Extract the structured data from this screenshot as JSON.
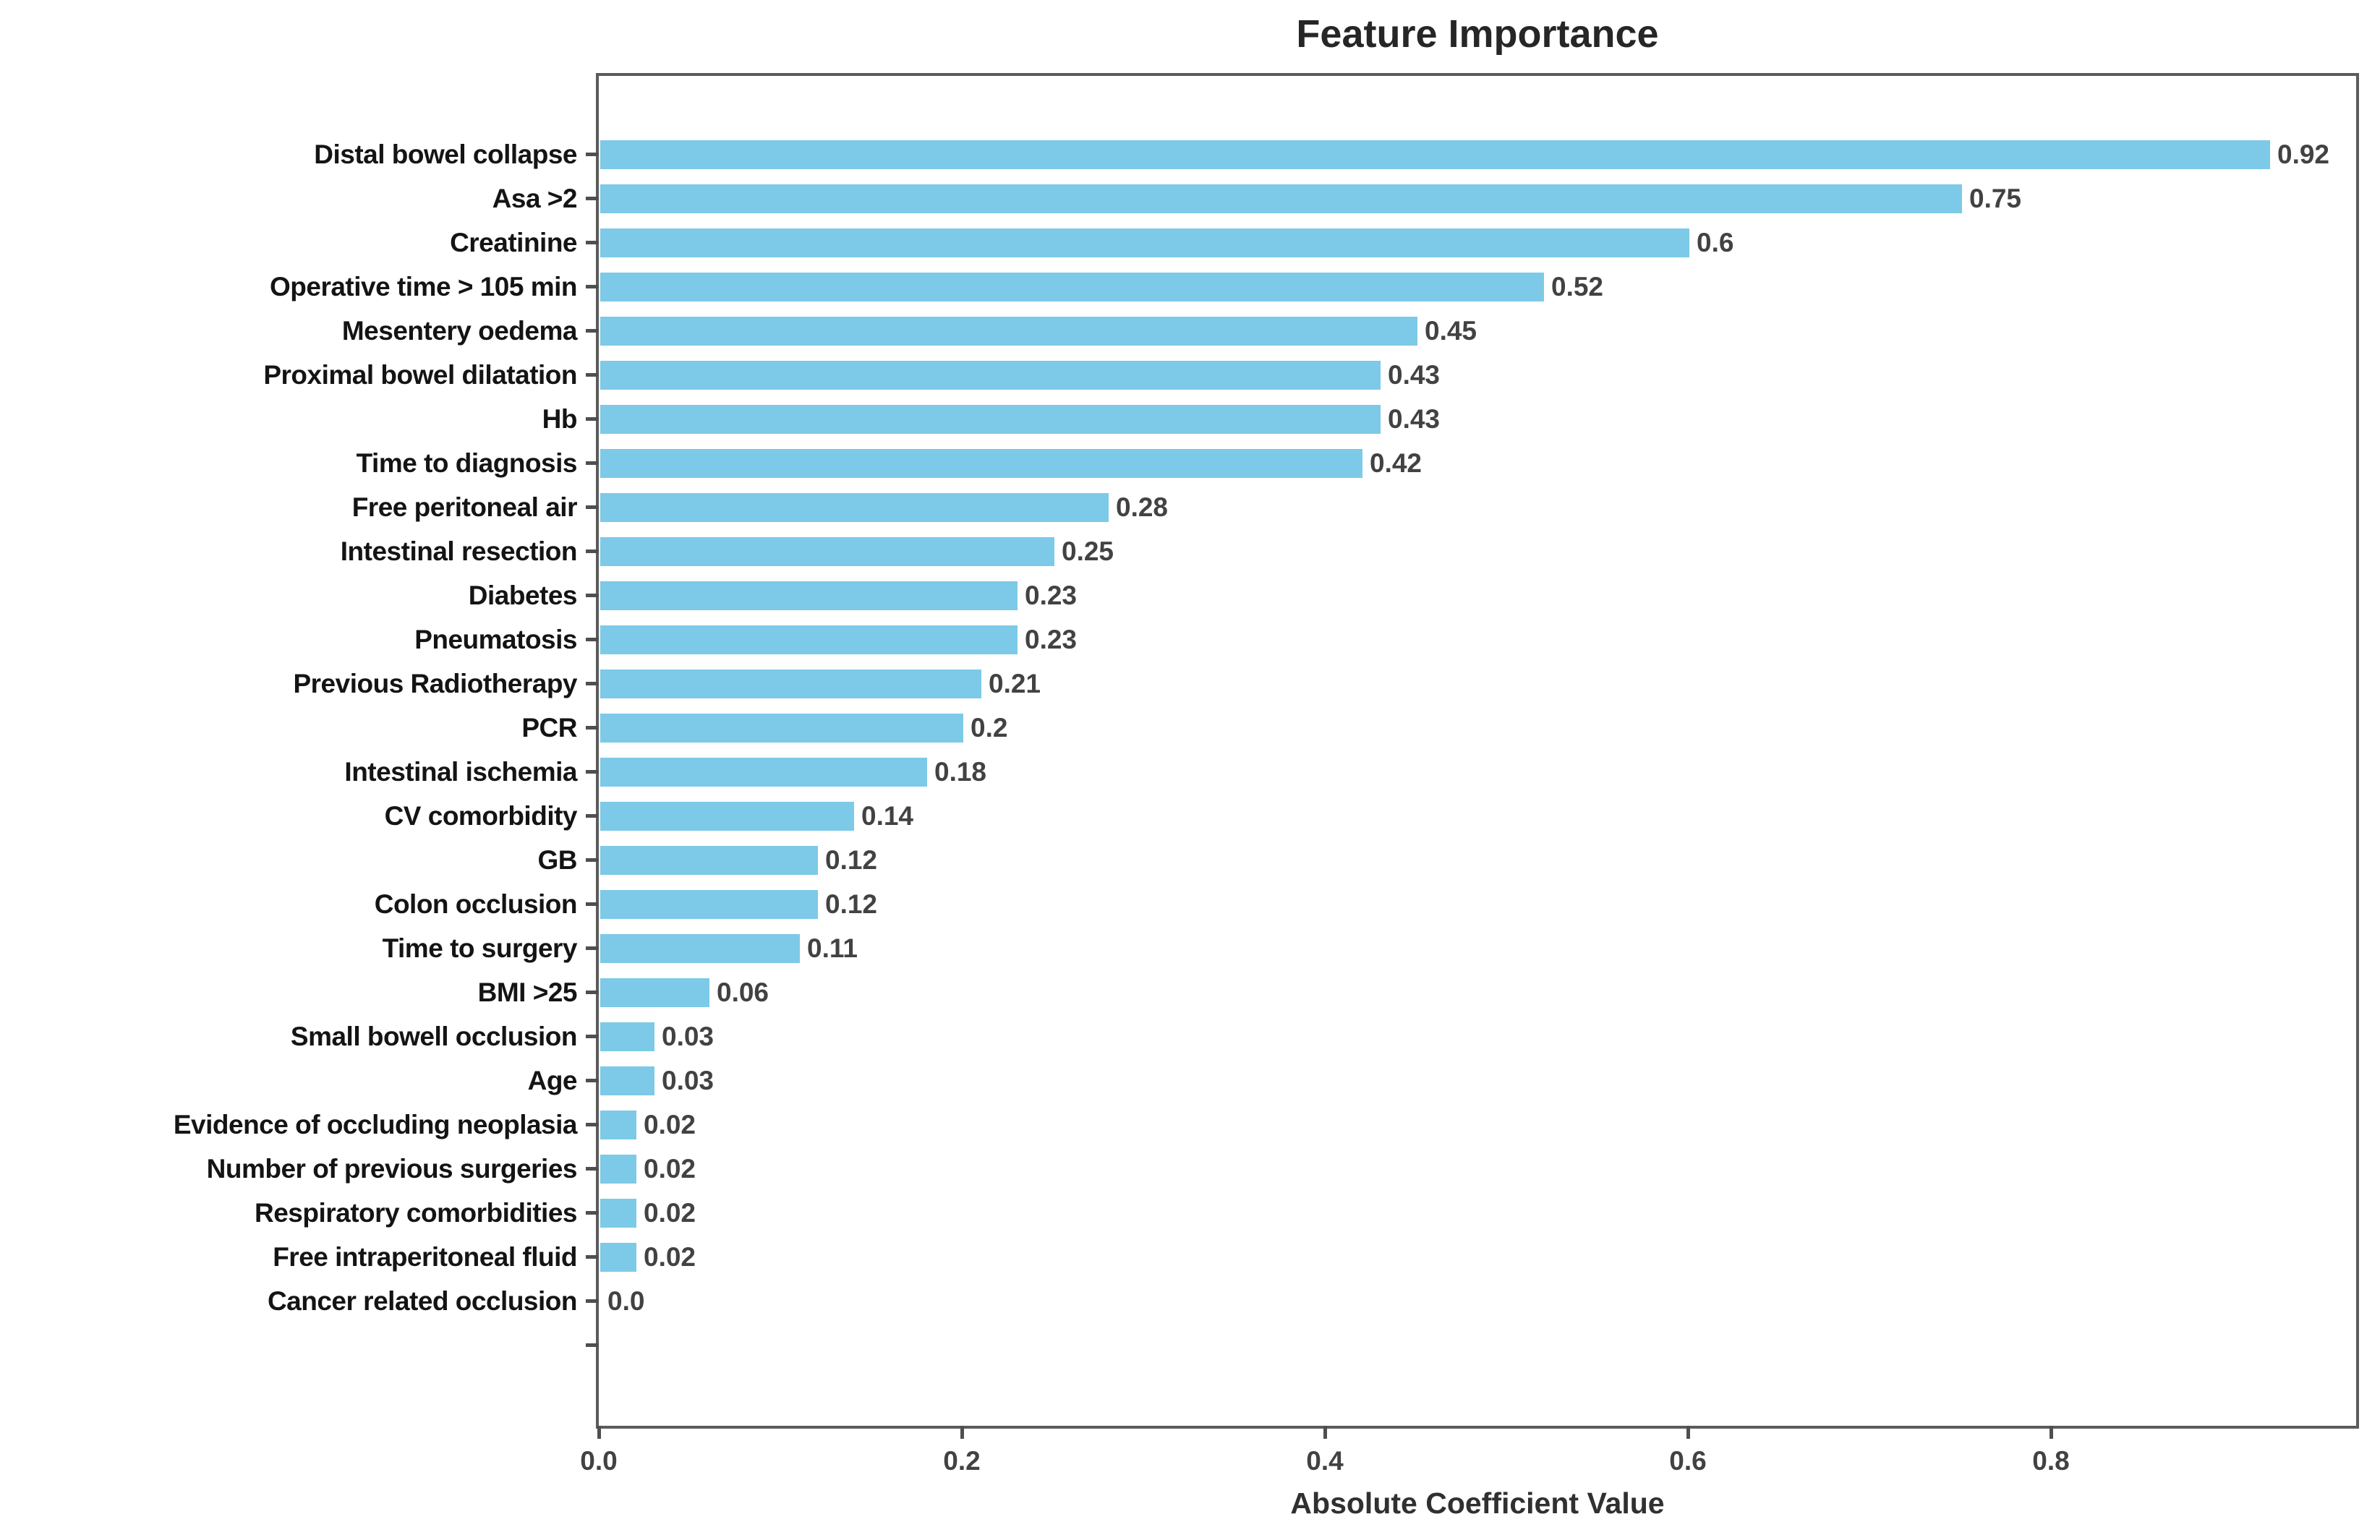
{
  "chart_data": {
    "type": "bar",
    "orientation": "horizontal",
    "title": "Feature Importance",
    "xlabel": "Absolute Coefficient Value",
    "ylabel": "",
    "xlim": [
      0.0,
      0.97
    ],
    "grid": false,
    "bar_color": "#7ccae7",
    "categories": [
      "Distal bowel collapse",
      "Asa >2",
      "Creatinine",
      "Operative time > 105 min",
      "Mesentery oedema",
      "Proximal bowel dilatation",
      "Hb",
      "Time to diagnosis",
      "Free peritoneal air",
      "Intestinal resection",
      "Diabetes",
      "Pneumatosis",
      "Previous Radiotherapy",
      "PCR",
      "Intestinal ischemia",
      "CV comorbidity",
      "GB",
      "Colon occlusion",
      "Time to surgery",
      "BMI >25",
      "Small bowell occlusion",
      "Age",
      "Evidence of occluding neoplasia",
      "Number of previous surgeries",
      "Respiratory comorbidities",
      "Free intraperitoneal fluid",
      "Cancer related occlusion"
    ],
    "values": [
      0.92,
      0.75,
      0.6,
      0.52,
      0.45,
      0.43,
      0.43,
      0.42,
      0.28,
      0.25,
      0.23,
      0.23,
      0.21,
      0.2,
      0.18,
      0.14,
      0.12,
      0.12,
      0.11,
      0.06,
      0.03,
      0.03,
      0.02,
      0.02,
      0.02,
      0.02,
      0.0
    ],
    "value_labels": [
      "0.92",
      "0.75",
      "0.6",
      "0.52",
      "0.45",
      "0.43",
      "0.43",
      "0.42",
      "0.28",
      "0.25",
      "0.23",
      "0.23",
      "0.21",
      "0.2",
      "0.18",
      "0.14",
      "0.12",
      "0.12",
      "0.11",
      "0.06",
      "0.03",
      "0.03",
      "0.02",
      "0.02",
      "0.02",
      "0.02",
      "0.0"
    ],
    "empty_trailing_rows": 1,
    "x_ticks": [
      {
        "value": 0.0,
        "label": "0.0"
      },
      {
        "value": 0.2,
        "label": "0.2"
      },
      {
        "value": 0.4,
        "label": "0.4"
      },
      {
        "value": 0.6,
        "label": "0.6"
      },
      {
        "value": 0.8,
        "label": "0.8"
      }
    ],
    "legend": null
  }
}
